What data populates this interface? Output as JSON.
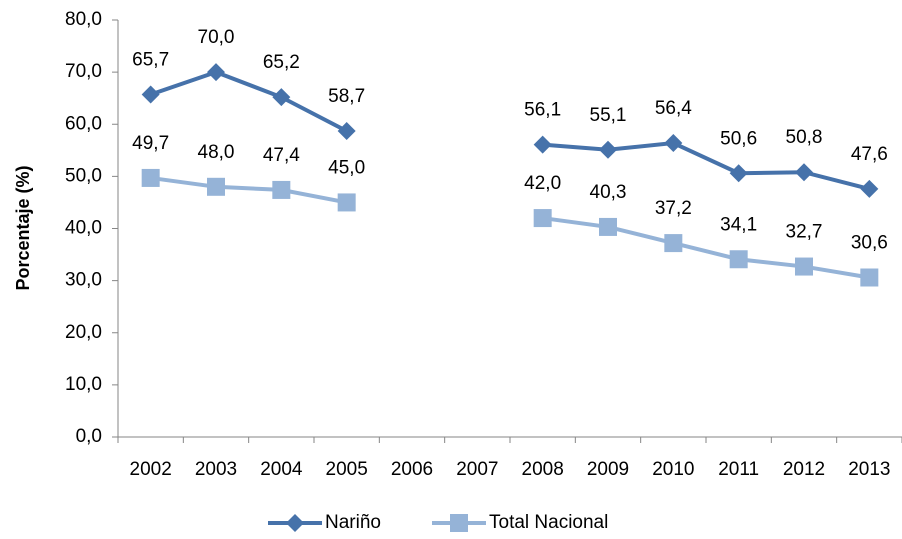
{
  "chart_data": {
    "type": "line",
    "y_label": "Porcentaje (%)",
    "categories": [
      "2002",
      "2003",
      "2004",
      "2005",
      "2006",
      "2007",
      "2008",
      "2009",
      "2010",
      "2011",
      "2012",
      "2013"
    ],
    "series": [
      {
        "name": "Nariño",
        "color": "#4672aa",
        "marker": "diamond",
        "values": [
          65.7,
          70.0,
          65.2,
          58.7,
          null,
          null,
          56.1,
          55.1,
          56.4,
          50.6,
          50.8,
          47.6
        ],
        "value_labels": [
          "65,7",
          "70,0",
          "65,2",
          "58,7",
          null,
          null,
          "56,1",
          "55,1",
          "56,4",
          "50,6",
          "50,8",
          "47,6"
        ]
      },
      {
        "name": "Total Nacional",
        "color": "#95b3d7",
        "marker": "square",
        "values": [
          49.7,
          48.0,
          47.4,
          45.0,
          null,
          null,
          42.0,
          40.3,
          37.2,
          34.1,
          32.7,
          30.6
        ],
        "value_labels": [
          "49,7",
          "48,0",
          "47,4",
          "45,0",
          null,
          null,
          "42,0",
          "40,3",
          "37,2",
          "34,1",
          "32,7",
          "30,6"
        ]
      }
    ],
    "ylim": [
      0,
      80
    ],
    "yticks": [
      {
        "value": 0,
        "label": "0,0"
      },
      {
        "value": 10,
        "label": "10,0"
      },
      {
        "value": 20,
        "label": "20,0"
      },
      {
        "value": 30,
        "label": "30,0"
      },
      {
        "value": 40,
        "label": "40,0"
      },
      {
        "value": 50,
        "label": "50,0"
      },
      {
        "value": 60,
        "label": "60,0"
      },
      {
        "value": 70,
        "label": "70,0"
      },
      {
        "value": 80,
        "label": "80,0"
      }
    ],
    "grid": false,
    "legend": "bottom"
  }
}
